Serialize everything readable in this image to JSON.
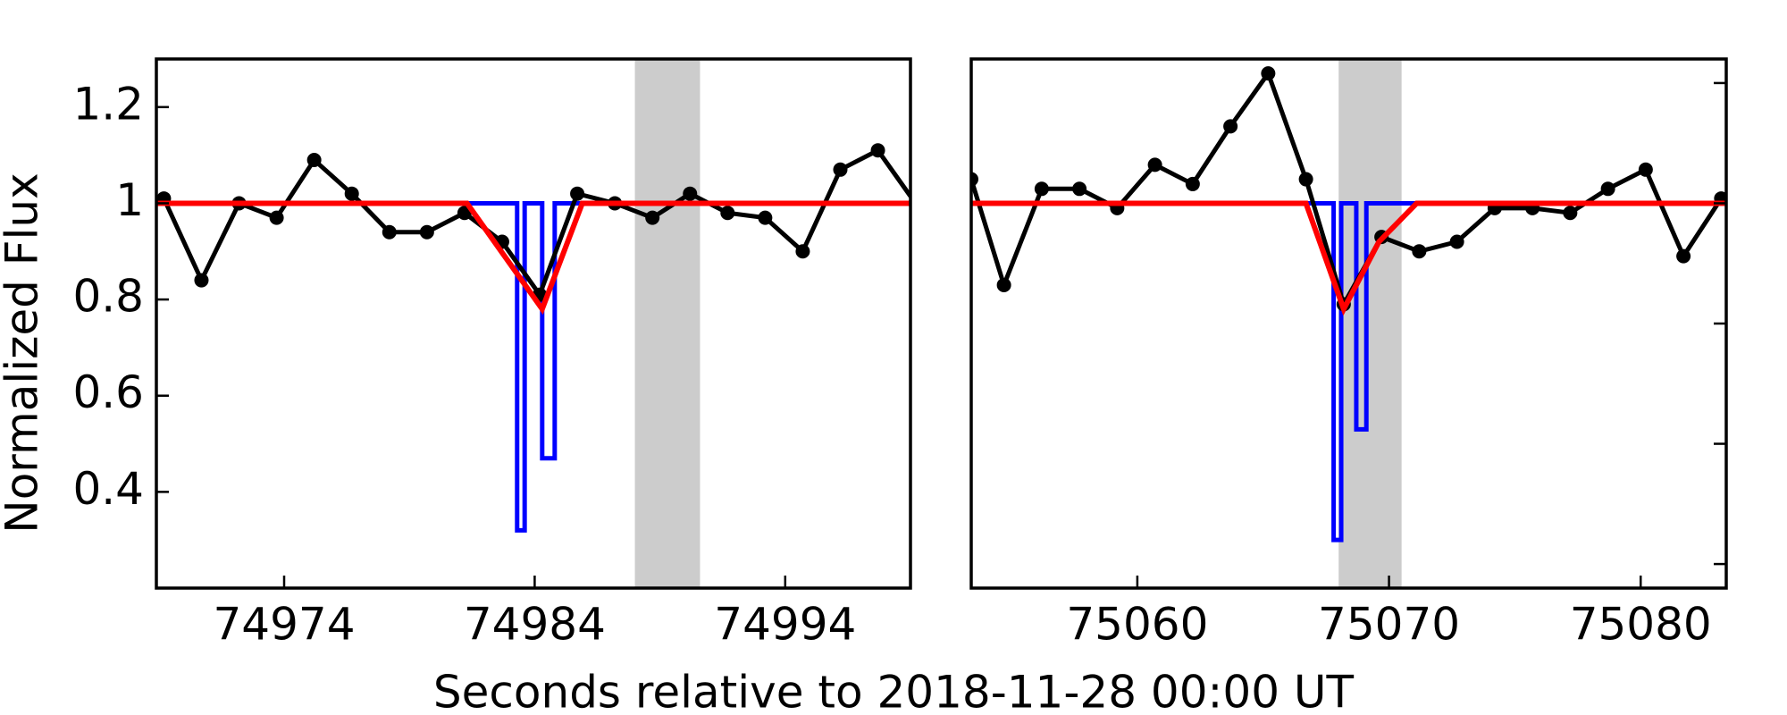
{
  "chart_data": [
    {
      "type": "line",
      "ylabel": "Normalized Flux",
      "xlabel": "Seconds relative to 2018-11-28 00:00 UT",
      "xlim": [
        74968.9,
        74999.0
      ],
      "xticks": [
        74974,
        74984,
        74994
      ],
      "ylim": [
        0.2,
        1.3
      ],
      "yticks": [
        0.4,
        0.6,
        0.8,
        1.0,
        1.2
      ],
      "ytick_labels": true,
      "ytick_side": "left",
      "shade": [
        74988.0,
        74990.6
      ],
      "shade_color": "#cccccc",
      "series": [
        {
          "color": "#0000ff",
          "marker": false,
          "width": 5,
          "x": [
            74968.9,
            74983.3,
            74983.3,
            74983.6,
            74983.6,
            74984.3,
            74984.3,
            74984.8,
            74984.8,
            74999.0
          ],
          "values": [
            1.0,
            1.0,
            0.32,
            0.32,
            1.0,
            1.0,
            0.47,
            0.47,
            1.0,
            1.0
          ]
        },
        {
          "color": "#000000",
          "marker": true,
          "width": 5,
          "x": [
            74969.2,
            74970.7,
            74972.2,
            74973.7,
            74975.2,
            74976.7,
            74978.2,
            74979.7,
            74981.2,
            74982.7,
            74984.2,
            74985.7,
            74987.2,
            74988.7,
            74990.2,
            74991.7,
            74993.2,
            74994.7,
            74996.2,
            74997.7,
            74999.2
          ],
          "values": [
            1.01,
            0.84,
            1.0,
            0.97,
            1.09,
            1.02,
            0.94,
            0.94,
            0.98,
            0.92,
            0.81,
            1.02,
            1.0,
            0.97,
            1.02,
            0.98,
            0.97,
            0.9,
            1.07,
            1.11,
            1.0
          ]
        },
        {
          "color": "#ff0000",
          "marker": false,
          "width": 6,
          "x": [
            74968.9,
            74981.3,
            74984.3,
            74985.9,
            74999.0
          ],
          "values": [
            1.0,
            1.0,
            0.78,
            1.0,
            1.0
          ]
        }
      ]
    },
    {
      "type": "line",
      "xlim": [
        75053.4,
        75083.4
      ],
      "xticks": [
        75060,
        75070,
        75080
      ],
      "ylim": [
        0.2,
        1.3
      ],
      "yticks": [
        0.25,
        0.5,
        0.75,
        1.0,
        1.25
      ],
      "ytick_labels": false,
      "ytick_side": "right",
      "shade": [
        75068.0,
        75070.5
      ],
      "shade_color": "#cccccc",
      "series": [
        {
          "color": "#0000ff",
          "marker": false,
          "width": 5,
          "x": [
            75053.4,
            75067.8,
            75067.8,
            75068.1,
            75068.1,
            75068.7,
            75068.7,
            75069.1,
            75069.1,
            75083.4
          ],
          "values": [
            1.0,
            1.0,
            0.3,
            0.3,
            1.0,
            1.0,
            0.53,
            0.53,
            1.0,
            1.0
          ]
        },
        {
          "color": "#000000",
          "marker": true,
          "width": 5,
          "x": [
            75053.4,
            75054.7,
            75056.2,
            75057.7,
            75059.2,
            75060.7,
            75062.2,
            75063.7,
            75065.2,
            75066.7,
            75068.2,
            75069.7,
            75071.2,
            75072.7,
            75074.2,
            75075.7,
            75077.2,
            75078.7,
            75080.2,
            75081.7,
            75083.2
          ],
          "values": [
            1.05,
            0.83,
            1.03,
            1.03,
            0.99,
            1.08,
            1.04,
            1.16,
            1.27,
            1.05,
            0.79,
            0.93,
            0.9,
            0.92,
            0.99,
            0.99,
            0.98,
            1.03,
            1.07,
            0.89,
            1.01
          ]
        },
        {
          "color": "#ff0000",
          "marker": false,
          "width": 6,
          "x": [
            75053.4,
            75066.7,
            75068.2,
            75069.6,
            75071.1,
            75083.4
          ],
          "values": [
            1.0,
            1.0,
            0.78,
            0.92,
            1.0,
            1.0
          ]
        }
      ]
    }
  ]
}
